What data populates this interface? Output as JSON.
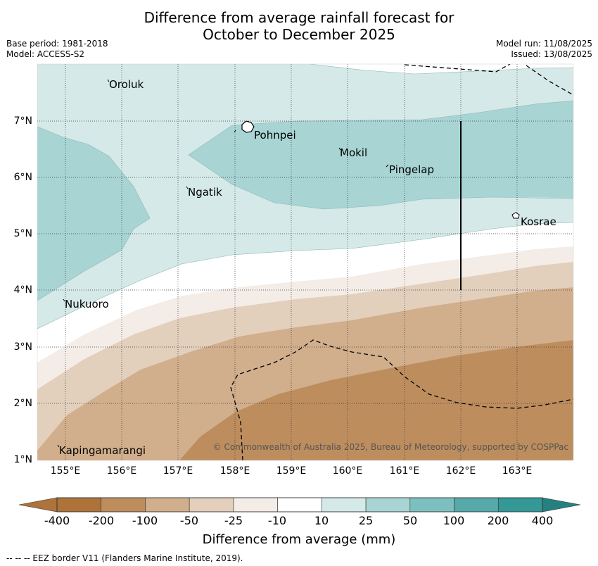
{
  "title_line1": "Difference from average rainfall forecast for",
  "title_line2": "October to December 2025",
  "base_period": "Base period: 1981-2018",
  "model": "Model: ACCESS-S2",
  "model_run": "Model run: 11/08/2025",
  "issued": "Issued: 13/08/2025",
  "x_ticks": [
    "155°E",
    "156°E",
    "157°E",
    "158°E",
    "159°E",
    "160°E",
    "161°E",
    "162°E",
    "163°E"
  ],
  "y_ticks": [
    "7°N",
    "6°N",
    "5°N",
    "4°N",
    "3°N",
    "2°N",
    "1°N"
  ],
  "places": {
    "oroluk": "Oroluk",
    "pohnpei": "Pohnpei",
    "mokil": "Mokil",
    "pingelap": "Pingelap",
    "ngatik": "Ngatik",
    "kosrae": "Kosrae",
    "nukuoro": "Nukuoro",
    "kapingamarangi": "Kapingamarangi"
  },
  "copyright": "© Commonwealth of Australia 2025, Bureau of Meteorology, supported by COSPPac",
  "colorbar": {
    "labels": [
      "-400",
      "-200",
      "-100",
      "-50",
      "-25",
      "-10",
      "10",
      "25",
      "50",
      "100",
      "200",
      "400"
    ],
    "colors": [
      "#ad733b",
      "#bd8d5e",
      "#d1ae8c",
      "#e2cfbc",
      "#f4ece6",
      "#ffffff",
      "#d4e9e8",
      "#a8d4d4",
      "#7dbfbe",
      "#55a9a9",
      "#349897"
    ],
    "title": "Difference from average (mm)"
  },
  "footnote": "--  --  -- EEZ border V11 (Flanders Marine Institute, 2019)."
}
